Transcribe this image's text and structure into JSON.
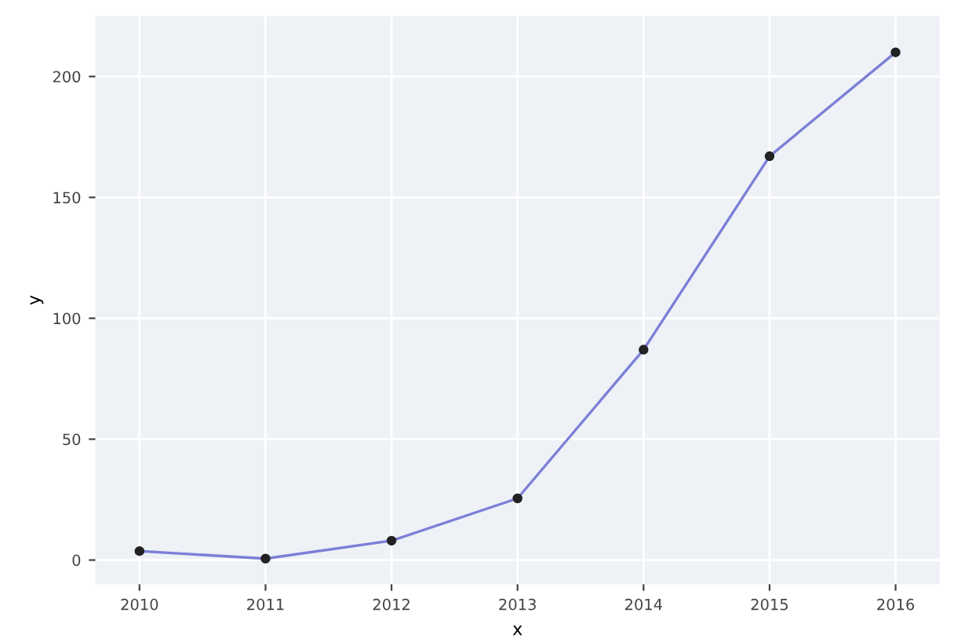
{
  "chart_data": {
    "type": "line",
    "xlabel": "x",
    "ylabel": "y",
    "x": [
      2010,
      2011,
      2012,
      2013,
      2014,
      2015,
      2016
    ],
    "xlim": [
      2009.65,
      2016.35
    ],
    "xticks": [
      2010,
      2011,
      2012,
      2013,
      2014,
      2015,
      2016
    ],
    "ylim": [
      -10,
      225
    ],
    "yticks": [
      0,
      50,
      100,
      150,
      200
    ],
    "series": [
      {
        "color": "#7b7fd6",
        "values": [
          3.7,
          0.6,
          8,
          25.5,
          87,
          167,
          210
        ]
      }
    ],
    "marker": "circle",
    "line_style": "solid",
    "grid": true
  }
}
